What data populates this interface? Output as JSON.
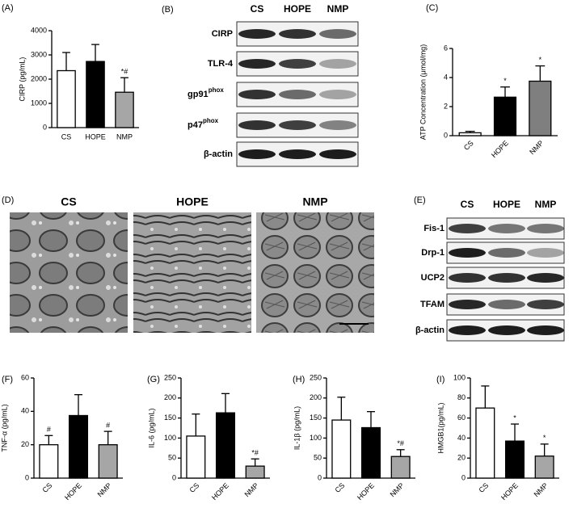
{
  "chart_data": [
    {
      "type": "bar",
      "panel": "(A)",
      "y_label": "CIRP (pg/mL)",
      "categories": [
        "CS",
        "HOPE",
        "NMP"
      ],
      "values": [
        2350,
        2730,
        1460
      ],
      "errors": [
        750,
        700,
        600
      ],
      "bar_labels": [
        null,
        null,
        "*#"
      ],
      "colors": [
        "#ffffff",
        "#000000",
        "#a6a6a6"
      ],
      "ylim": [
        0,
        4000
      ],
      "yticks": [
        0,
        1000,
        2000,
        3000,
        4000
      ]
    },
    {
      "type": "bar",
      "panel": "(C)",
      "y_label": "ATP Concentration (μmol/mg)",
      "categories": [
        "CS",
        "HOPE",
        "NMP"
      ],
      "values": [
        0.2,
        2.65,
        3.75
      ],
      "errors": [
        0.1,
        0.7,
        1.05
      ],
      "bar_labels": [
        null,
        "*",
        "*"
      ],
      "colors": [
        "#ffffff",
        "#000000",
        "#7f7f7f"
      ],
      "ylim": [
        0,
        6
      ],
      "yticks": [
        0,
        2,
        4,
        6
      ]
    },
    {
      "type": "bar",
      "panel": "(F)",
      "y_label": "TNF-α (pg/mL)",
      "categories": [
        "CS",
        "HOPE",
        "NMP"
      ],
      "values": [
        20,
        37.5,
        20
      ],
      "errors": [
        5.5,
        12.5,
        8
      ],
      "bar_labels": [
        "#",
        null,
        "#"
      ],
      "colors": [
        "#ffffff",
        "#000000",
        "#a6a6a6"
      ],
      "ylim": [
        0,
        60
      ],
      "yticks": [
        0,
        20,
        40,
        60
      ]
    },
    {
      "type": "bar",
      "panel": "(G)",
      "y_label": "IL-6 (pg/mL)",
      "categories": [
        "CS",
        "HOPE",
        "NMP"
      ],
      "values": [
        105,
        163,
        30
      ],
      "errors": [
        55,
        48,
        18
      ],
      "bar_labels": [
        null,
        null,
        "*#"
      ],
      "colors": [
        "#ffffff",
        "#000000",
        "#a6a6a6"
      ],
      "ylim": [
        0,
        250
      ],
      "yticks": [
        0,
        50,
        100,
        150,
        200,
        250
      ]
    },
    {
      "type": "bar",
      "panel": "(H)",
      "y_label": "IL-1β (pg/mL)",
      "categories": [
        "CS",
        "HOPE",
        "NMP"
      ],
      "values": [
        145,
        126,
        54
      ],
      "errors": [
        57,
        40,
        17
      ],
      "bar_labels": [
        null,
        null,
        "*#"
      ],
      "colors": [
        "#ffffff",
        "#000000",
        "#a6a6a6"
      ],
      "ylim": [
        0,
        250
      ],
      "yticks": [
        0,
        50,
        100,
        150,
        200,
        250
      ]
    },
    {
      "type": "bar",
      "panel": "(I)",
      "y_label": "HMGB1(pg/mL)",
      "categories": [
        "CS",
        "HOPE",
        "NMP"
      ],
      "values": [
        70,
        37,
        22
      ],
      "errors": [
        22,
        17,
        12
      ],
      "bar_labels": [
        null,
        "*",
        "*"
      ],
      "colors": [
        "#ffffff",
        "#000000",
        "#a6a6a6"
      ],
      "ylim": [
        0,
        100
      ],
      "yticks": [
        0,
        20,
        40,
        60,
        80,
        100
      ]
    }
  ],
  "blots": [
    {
      "panel": "(B)",
      "lanes": [
        "CS",
        "HOPE",
        "NMP"
      ],
      "rows": [
        {
          "label": "CIRP"
        },
        {
          "label": "TLR-4"
        },
        {
          "label": "gp91",
          "sup": "phox"
        },
        {
          "label": "p47",
          "sup": "phox"
        },
        {
          "label": "β-actin"
        }
      ]
    },
    {
      "panel": "(E)",
      "lanes": [
        "CS",
        "HOPE",
        "NMP"
      ],
      "rows": [
        {
          "label": "Fis-1"
        },
        {
          "label": "Drp-1"
        },
        {
          "label": "UCP2"
        },
        {
          "label": "TFAM"
        },
        {
          "label": "β-actin"
        }
      ]
    }
  ],
  "micrographs": {
    "panel": "(D)",
    "labels": [
      "CS",
      "HOPE",
      "NMP"
    ]
  }
}
